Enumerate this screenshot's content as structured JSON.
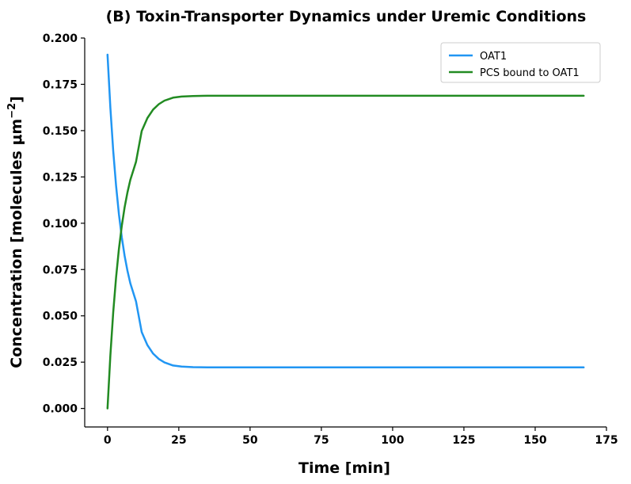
{
  "chart_data": {
    "type": "line",
    "title": "(B) Toxin-Transporter Dynamics under Uremic Conditions",
    "xlabel": "Time [min]",
    "ylabel_main": "Concentration [molecules μm",
    "ylabel_sup": "−2",
    "ylabel_close": "]",
    "xlim": [
      -8,
      175
    ],
    "ylim": [
      -0.01,
      0.2
    ],
    "xticks": [
      0,
      25,
      50,
      75,
      100,
      125,
      150,
      175
    ],
    "xtick_labels": [
      "0",
      "25",
      "50",
      "75",
      "100",
      "125",
      "150",
      "175"
    ],
    "yticks": [
      0,
      0.025,
      0.05,
      0.075,
      0.1,
      0.125,
      0.15,
      0.175,
      0.2
    ],
    "ytick_labels": [
      "0.000",
      "0.025",
      "0.050",
      "0.075",
      "0.100",
      "0.125",
      "0.150",
      "0.175",
      "0.200"
    ],
    "grid": false,
    "legend_position": "top-right",
    "series": [
      {
        "name": "OAT1",
        "color": "#2196f3",
        "x": [
          0,
          1,
          2,
          3,
          4,
          5,
          6,
          7,
          8,
          10,
          12,
          14,
          16,
          18,
          20,
          23,
          26,
          30,
          35,
          40,
          50,
          75,
          100,
          125,
          150,
          167
        ],
        "y": [
          0.191,
          0.1624,
          0.1391,
          0.1203,
          0.1049,
          0.0925,
          0.0824,
          0.0743,
          0.0676,
          0.0578,
          0.0412,
          0.0342,
          0.0296,
          0.0267,
          0.0248,
          0.0232,
          0.0226,
          0.0223,
          0.0222,
          0.0222,
          0.0222,
          0.0222,
          0.0222,
          0.0222,
          0.0222,
          0.0222
        ]
      },
      {
        "name": "PCS bound to OAT1",
        "color": "#228b22",
        "x": [
          0,
          1,
          2,
          3,
          4,
          5,
          6,
          7,
          8,
          10,
          12,
          14,
          16,
          18,
          20,
          23,
          26,
          30,
          35,
          40,
          50,
          75,
          100,
          125,
          150,
          167
        ],
        "y": [
          0.0,
          0.0286,
          0.0519,
          0.0707,
          0.0861,
          0.0985,
          0.1086,
          0.1167,
          0.1234,
          0.1332,
          0.1498,
          0.1568,
          0.1614,
          0.1643,
          0.1662,
          0.1678,
          0.1684,
          0.1687,
          0.1688,
          0.1688,
          0.1688,
          0.1688,
          0.1688,
          0.1688,
          0.1688,
          0.1688
        ]
      }
    ]
  }
}
